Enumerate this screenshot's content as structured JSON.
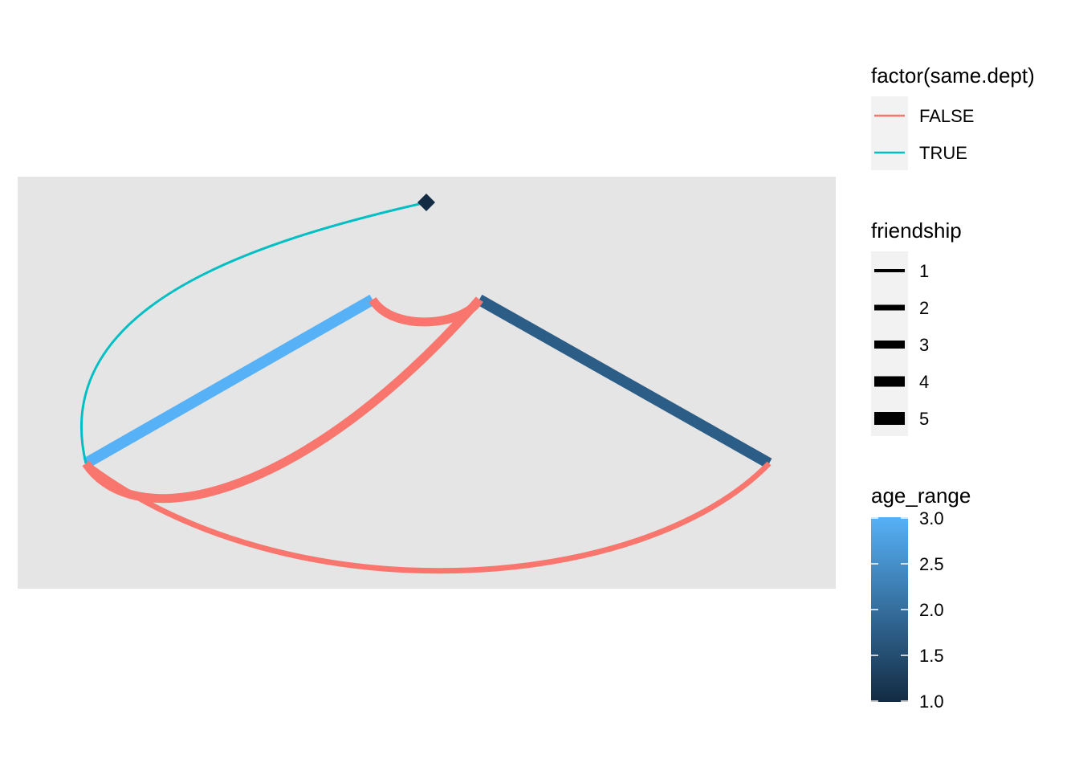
{
  "chart_data": {
    "type": "network",
    "layout": "linear-arc",
    "nodes": [
      {
        "id": "A",
        "age_range": 3.0
      },
      {
        "id": "B",
        "age_range": 3.0
      },
      {
        "id": "C",
        "age_range": 1.75
      },
      {
        "id": "D",
        "age_range": 1.75
      },
      {
        "id": "E",
        "age_range": 1.0
      }
    ],
    "edges": [
      {
        "from": "A",
        "to": "B",
        "same_dept": "FALSE",
        "friendship": 3,
        "color_group": "age_range",
        "straight": true
      },
      {
        "from": "C",
        "to": "D",
        "same_dept": "FALSE",
        "friendship": 3,
        "color_group": "age_range",
        "straight": true
      },
      {
        "from": "B",
        "to": "C",
        "same_dept": "FALSE",
        "friendship": 3,
        "color_group": "same_dept"
      },
      {
        "from": "A",
        "to": "C",
        "same_dept": "FALSE",
        "friendship": 3,
        "color_group": "same_dept"
      },
      {
        "from": "A",
        "to": "D",
        "same_dept": "FALSE",
        "friendship": 2,
        "color_group": "same_dept"
      },
      {
        "from": "A",
        "to": "E",
        "same_dept": "TRUE",
        "friendship": 1,
        "color_group": "same_dept"
      }
    ],
    "legends": {
      "same_dept": {
        "title": "factor(same.dept)",
        "entries": [
          {
            "label": "FALSE",
            "color": "#F8766D"
          },
          {
            "label": "TRUE",
            "color": "#00BFC4"
          }
        ]
      },
      "friendship": {
        "title": "friendship",
        "entries": [
          "1",
          "2",
          "3",
          "4",
          "5"
        ]
      },
      "age_range": {
        "title": "age_range",
        "ticks": [
          "3.0",
          "2.5",
          "2.0",
          "1.5",
          "1.0"
        ],
        "range": [
          1.0,
          3.0
        ],
        "low_color": "#132B43",
        "high_color": "#56B1F7"
      }
    },
    "panel_background": "#E5E5E5"
  }
}
